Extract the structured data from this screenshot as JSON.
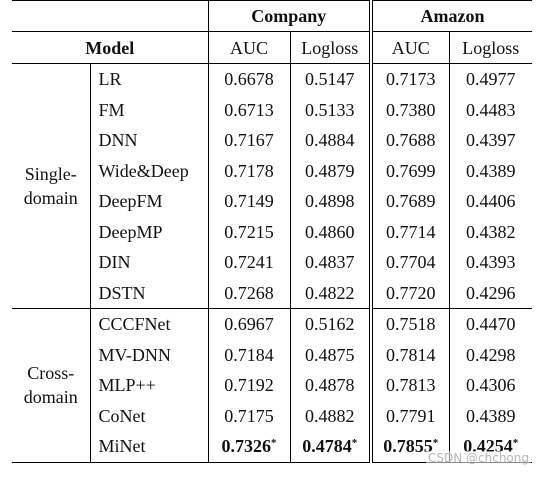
{
  "caption_fragment": "",
  "header": {
    "company": "Company",
    "amazon": "Amazon",
    "model": "Model",
    "auc": "AUC",
    "logloss": "Logloss"
  },
  "groups": [
    {
      "label_line1": "Single-",
      "label_line2": "domain",
      "rows": [
        {
          "model": "LR",
          "c_auc": "0.6678",
          "c_logloss": "0.5147",
          "a_auc": "0.7173",
          "a_logloss": "0.4977"
        },
        {
          "model": "FM",
          "c_auc": "0.6713",
          "c_logloss": "0.5133",
          "a_auc": "0.7380",
          "a_logloss": "0.4483"
        },
        {
          "model": "DNN",
          "c_auc": "0.7167",
          "c_logloss": "0.4884",
          "a_auc": "0.7688",
          "a_logloss": "0.4397"
        },
        {
          "model": "Wide&Deep",
          "c_auc": "0.7178",
          "c_logloss": "0.4879",
          "a_auc": "0.7699",
          "a_logloss": "0.4389"
        },
        {
          "model": "DeepFM",
          "c_auc": "0.7149",
          "c_logloss": "0.4898",
          "a_auc": "0.7689",
          "a_logloss": "0.4406"
        },
        {
          "model": "DeepMP",
          "c_auc": "0.7215",
          "c_logloss": "0.4860",
          "a_auc": "0.7714",
          "a_logloss": "0.4382"
        },
        {
          "model": "DIN",
          "c_auc": "0.7241",
          "c_logloss": "0.4837",
          "a_auc": "0.7704",
          "a_logloss": "0.4393"
        },
        {
          "model": "DSTN",
          "c_auc": "0.7268",
          "c_logloss": "0.4822",
          "a_auc": "0.7720",
          "a_logloss": "0.4296"
        }
      ]
    },
    {
      "label_line1": "Cross-",
      "label_line2": "domain",
      "rows": [
        {
          "model": "CCCFNet",
          "c_auc": "0.6967",
          "c_logloss": "0.5162",
          "a_auc": "0.7518",
          "a_logloss": "0.4470"
        },
        {
          "model": "MV-DNN",
          "c_auc": "0.7184",
          "c_logloss": "0.4875",
          "a_auc": "0.7814",
          "a_logloss": "0.4298"
        },
        {
          "model": "MLP++",
          "c_auc": "0.7192",
          "c_logloss": "0.4878",
          "a_auc": "0.7813",
          "a_logloss": "0.4306"
        },
        {
          "model": "CoNet",
          "c_auc": "0.7175",
          "c_logloss": "0.4882",
          "a_auc": "0.7791",
          "a_logloss": "0.4389"
        }
      ],
      "best_row": {
        "model": "MiNet",
        "c_auc": "0.7326",
        "c_logloss": "0.4784",
        "a_auc": "0.7855",
        "a_logloss": "0.4254",
        "mark": "*"
      }
    }
  ],
  "watermark": "CSDN @chchong"
}
